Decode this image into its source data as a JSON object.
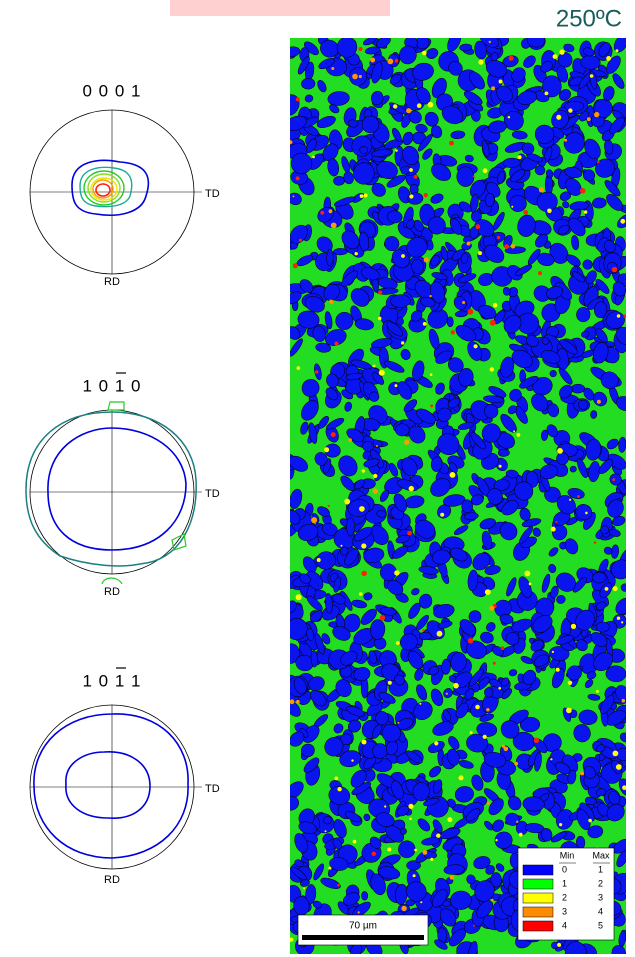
{
  "temperature": "250ºC",
  "pole_figures": [
    {
      "label": "0 0 0 1",
      "td": "TD",
      "rd": "RD"
    },
    {
      "label": "1 0 1 0",
      "td": "TD",
      "rd": "RD"
    },
    {
      "label": "1 0 1 1",
      "td": "TD",
      "rd": "RD"
    }
  ],
  "map": {
    "scale_bar": "70 µm",
    "legend": {
      "headers": [
        "Min",
        "Max"
      ],
      "rows": [
        {
          "color": "#0000ff",
          "min": "0",
          "max": "1"
        },
        {
          "color": "#00ff00",
          "min": "1",
          "max": "2"
        },
        {
          "color": "#ffff00",
          "min": "2",
          "max": "3"
        },
        {
          "color": "#ff8c00",
          "min": "3",
          "max": "4"
        },
        {
          "color": "#ff0000",
          "min": "4",
          "max": "5"
        }
      ]
    }
  }
}
